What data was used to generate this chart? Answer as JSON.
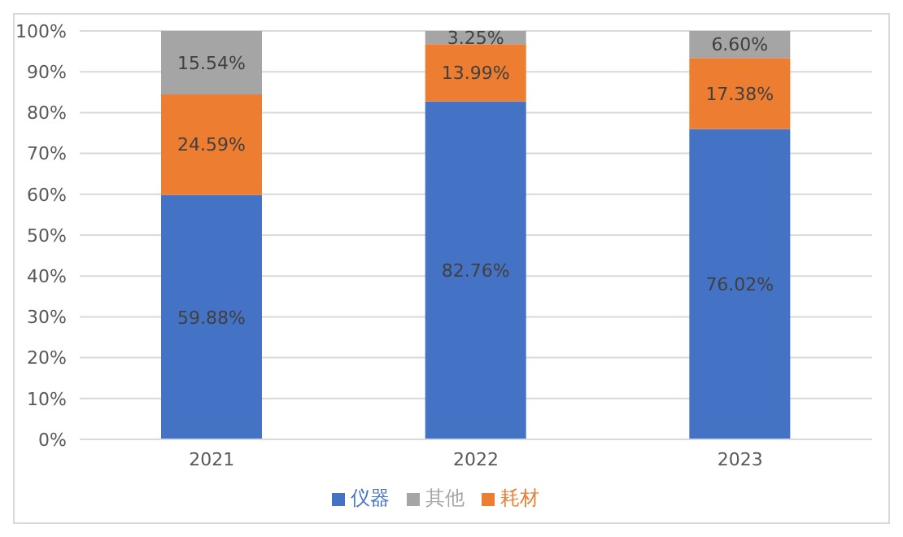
{
  "chart_data": {
    "type": "bar",
    "stacked": true,
    "categories": [
      "2021",
      "2022",
      "2023"
    ],
    "series": [
      {
        "name": "仪器",
        "color": "#4472c4",
        "values": [
          59.88,
          82.76,
          76.02
        ],
        "value_labels": [
          "59.88%",
          "82.76%",
          "76.02%"
        ]
      },
      {
        "name": "耗材",
        "color": "#ed7d31",
        "values": [
          24.59,
          13.99,
          17.38
        ],
        "value_labels": [
          "24.59%",
          "13.99%",
          "17.38%"
        ]
      },
      {
        "name": "其他",
        "color": "#a5a5a5",
        "values": [
          15.54,
          3.25,
          6.6
        ],
        "value_labels": [
          "15.54%",
          "3.25%",
          "6.60%"
        ]
      }
    ],
    "ylim": [
      0,
      100
    ],
    "yticks": [
      {
        "value": 0,
        "label": "0%"
      },
      {
        "value": 10,
        "label": "10%"
      },
      {
        "value": 20,
        "label": "20%"
      },
      {
        "value": 30,
        "label": "30%"
      },
      {
        "value": 40,
        "label": "40%"
      },
      {
        "value": 50,
        "label": "50%"
      },
      {
        "value": 60,
        "label": "60%"
      },
      {
        "value": 70,
        "label": "70%"
      },
      {
        "value": 80,
        "label": "80%"
      },
      {
        "value": 90,
        "label": "90%"
      },
      {
        "value": 100,
        "label": "100%"
      }
    ],
    "grid": "y",
    "legend": "bottom"
  }
}
